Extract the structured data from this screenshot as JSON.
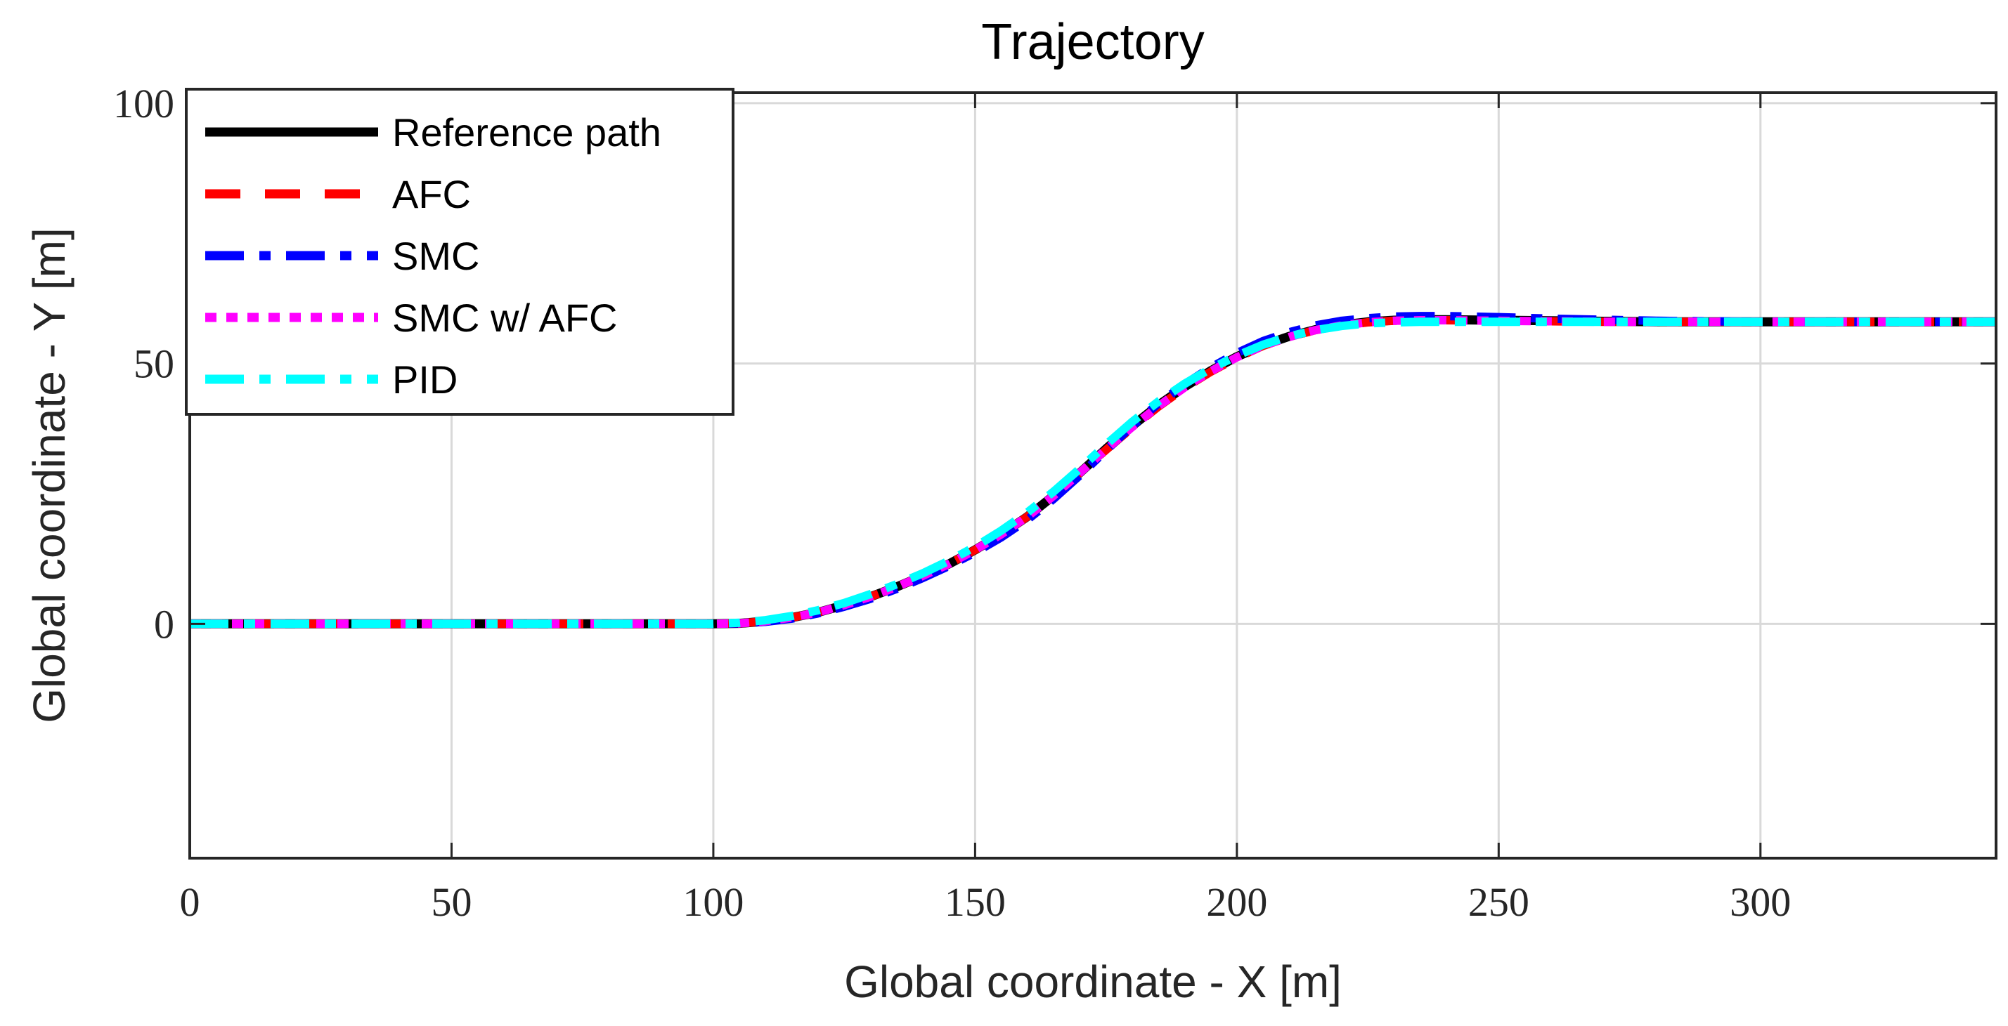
{
  "chart_data": {
    "type": "line",
    "title": "Trajectory",
    "xlabel": "Global coordinate - X [m]",
    "ylabel": "Global coordinate - Y [m]",
    "xlim": [
      0,
      345
    ],
    "ylim": [
      -45,
      102
    ],
    "xticks": [
      0,
      50,
      100,
      150,
      200,
      250,
      300
    ],
    "yticks": [
      0,
      50,
      100
    ],
    "xtick_labels": [
      "0",
      "50",
      "100",
      "150",
      "200",
      "250",
      "300"
    ],
    "ytick_labels": [
      "0",
      "50",
      "100"
    ],
    "grid": true,
    "legend_position": "top-left",
    "x": [
      0,
      10,
      20,
      30,
      40,
      50,
      60,
      70,
      80,
      90,
      100,
      105,
      110,
      115,
      120,
      125,
      130,
      135,
      140,
      145,
      150,
      155,
      160,
      165,
      170,
      175,
      180,
      185,
      190,
      195,
      200,
      205,
      210,
      215,
      220,
      225,
      230,
      235,
      240,
      250,
      260,
      270,
      280,
      290,
      300,
      310,
      320,
      330,
      345
    ],
    "series": [
      {
        "name": "Reference path",
        "color": "#000000",
        "style": "solid",
        "values": [
          0,
          0,
          0,
          0,
          0,
          0,
          0,
          0,
          0,
          0,
          0,
          0.1,
          0.5,
          1.2,
          2.2,
          3.6,
          5.2,
          7.1,
          9.2,
          11.5,
          14.2,
          17.2,
          20.6,
          24.6,
          29.0,
          33.6,
          38.0,
          42.0,
          45.5,
          48.6,
          51.3,
          53.5,
          55.2,
          56.5,
          57.4,
          58.0,
          58.3,
          58.4,
          58.4,
          58.3,
          58.2,
          58.1,
          58.0,
          58.0,
          58.0,
          58.0,
          58.0,
          58.0,
          58.0
        ]
      },
      {
        "name": "AFC",
        "color": "#ff0000",
        "style": "dashed",
        "values": [
          0,
          0,
          0,
          0,
          0,
          0,
          0,
          0,
          0,
          0,
          0,
          0.1,
          0.5,
          1.2,
          2.2,
          3.6,
          5.2,
          7.1,
          9.2,
          11.5,
          14.2,
          17.2,
          20.6,
          24.6,
          29.0,
          33.4,
          37.7,
          41.7,
          45.3,
          48.4,
          51.1,
          53.4,
          55.1,
          56.4,
          57.3,
          57.9,
          58.2,
          58.3,
          58.3,
          58.2,
          58.1,
          58.0,
          58.0,
          58.0,
          58.0,
          58.0,
          58.0,
          58.0,
          58.0
        ]
      },
      {
        "name": "SMC",
        "color": "#0000ff",
        "style": "dashdot",
        "values": [
          0,
          0,
          0,
          0,
          0,
          0,
          0,
          0,
          0,
          0,
          0,
          0.1,
          0.4,
          1.0,
          2.0,
          3.3,
          4.8,
          6.7,
          8.8,
          11.1,
          13.7,
          16.6,
          20.0,
          24.0,
          28.5,
          33.3,
          38.0,
          42.3,
          46.0,
          49.2,
          52.0,
          54.3,
          56.0,
          57.3,
          58.2,
          58.7,
          59.0,
          59.1,
          59.1,
          58.9,
          58.6,
          58.4,
          58.2,
          58.1,
          58.0,
          58.0,
          58.0,
          58.0,
          58.0
        ]
      },
      {
        "name": "SMC w/ AFC",
        "color": "#ff00ff",
        "style": "dotted",
        "values": [
          0,
          0,
          0,
          0,
          0,
          0,
          0,
          0,
          0,
          0,
          0,
          0.1,
          0.5,
          1.2,
          2.2,
          3.6,
          5.2,
          7.1,
          9.2,
          11.5,
          14.2,
          17.2,
          20.6,
          24.6,
          29.0,
          33.5,
          37.8,
          41.8,
          45.4,
          48.5,
          51.2,
          53.4,
          55.1,
          56.4,
          57.3,
          57.9,
          58.2,
          58.3,
          58.3,
          58.2,
          58.1,
          58.0,
          58.0,
          58.0,
          58.0,
          58.0,
          58.0,
          58.0,
          58.0
        ]
      },
      {
        "name": "PID",
        "color": "#00ffff",
        "style": "dashdot",
        "values": [
          0,
          0,
          0,
          0,
          0,
          0,
          0,
          0,
          0,
          0,
          0,
          0.2,
          0.7,
          1.5,
          2.6,
          4.0,
          5.7,
          7.6,
          9.7,
          12.1,
          14.8,
          17.9,
          21.4,
          25.4,
          29.8,
          34.4,
          38.8,
          42.7,
          46.1,
          49.0,
          51.5,
          53.6,
          55.2,
          56.4,
          57.2,
          57.7,
          57.9,
          58.0,
          58.0,
          58.0,
          58.0,
          58.0,
          58.0,
          58.0,
          58.0,
          58.0,
          58.0,
          58.0,
          58.0
        ]
      }
    ]
  }
}
